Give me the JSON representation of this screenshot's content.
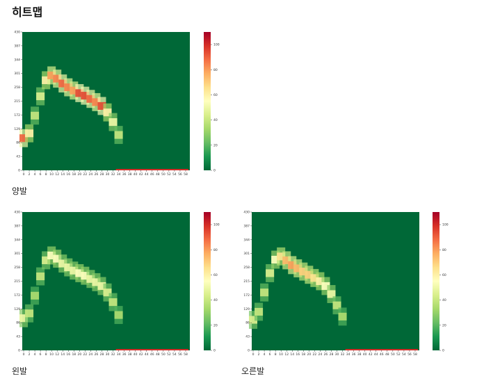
{
  "title": "히트맵",
  "chart_data": [
    {
      "type": "heatmap",
      "caption": "양발",
      "colormap": "RdYlGn_r",
      "xlim": [
        -0.5,
        59.5
      ],
      "xticks": [
        0,
        2,
        4,
        6,
        8,
        10,
        12,
        14,
        16,
        18,
        20,
        22,
        24,
        26,
        28,
        30,
        32,
        34,
        36,
        38,
        40,
        42,
        44,
        46,
        48,
        50,
        52,
        54,
        56,
        58
      ],
      "ylim": [
        0,
        430
      ],
      "yticks": [
        0,
        43,
        86,
        129,
        172,
        215,
        258,
        301,
        344,
        387,
        430
      ],
      "clim": [
        0,
        110
      ],
      "cticks": [
        0,
        20,
        40,
        60,
        80,
        100
      ],
      "x": [
        0,
        2,
        4,
        6,
        8,
        10,
        12,
        14,
        16,
        18,
        20,
        22,
        24,
        26,
        28,
        30,
        32,
        34
      ],
      "ridge": [
        100,
        115,
        170,
        230,
        280,
        295,
        285,
        270,
        258,
        248,
        240,
        232,
        222,
        212,
        200,
        180,
        150,
        110
      ],
      "intensity": [
        90,
        60,
        40,
        45,
        60,
        80,
        85,
        90,
        85,
        80,
        95,
        95,
        90,
        85,
        95,
        60,
        50,
        40
      ],
      "bottom_row": {
        "from": 33,
        "to": 59,
        "value": 100
      }
    },
    {
      "type": "heatmap",
      "caption": "왼발",
      "colormap": "RdYlGn_r",
      "xlim": [
        -0.5,
        59.5
      ],
      "xticks": [
        0,
        2,
        4,
        6,
        8,
        10,
        12,
        14,
        16,
        18,
        20,
        22,
        24,
        26,
        28,
        30,
        32,
        34,
        36,
        38,
        40,
        42,
        44,
        46,
        48,
        50,
        52,
        54,
        56,
        58
      ],
      "ylim": [
        0,
        430
      ],
      "yticks": [
        0,
        43,
        86,
        129,
        172,
        215,
        258,
        301,
        344,
        387,
        430
      ],
      "clim": [
        0,
        110
      ],
      "cticks": [
        0,
        20,
        40,
        60,
        80,
        100
      ],
      "x": [
        0,
        2,
        4,
        6,
        8,
        10,
        12,
        14,
        16,
        18,
        20,
        22,
        24,
        26,
        28,
        30,
        32,
        34
      ],
      "ridge": [
        100,
        115,
        170,
        230,
        280,
        295,
        285,
        270,
        258,
        248,
        240,
        232,
        222,
        212,
        200,
        180,
        150,
        110
      ],
      "intensity": [
        50,
        40,
        35,
        40,
        45,
        55,
        55,
        50,
        50,
        50,
        55,
        55,
        50,
        50,
        50,
        45,
        40,
        35
      ],
      "bottom_row": {
        "from": 33,
        "to": 59,
        "value": 100
      }
    },
    {
      "type": "heatmap",
      "caption": "오른발",
      "colormap": "RdYlGn_r",
      "xlim": [
        -0.5,
        59.5
      ],
      "xticks": [
        0,
        2,
        4,
        6,
        8,
        10,
        12,
        14,
        16,
        18,
        20,
        22,
        24,
        26,
        28,
        30,
        32,
        34,
        36,
        38,
        40,
        42,
        44,
        46,
        48,
        50,
        52,
        54,
        56,
        58
      ],
      "ylim": [
        0,
        430
      ],
      "yticks": [
        0,
        43,
        86,
        129,
        172,
        215,
        258,
        301,
        344,
        387,
        430
      ],
      "clim": [
        0,
        110
      ],
      "cticks": [
        0,
        20,
        40,
        60,
        80,
        100
      ],
      "x": [
        0,
        2,
        4,
        6,
        8,
        10,
        12,
        14,
        16,
        18,
        20,
        22,
        24,
        26,
        28,
        30,
        32
      ],
      "ridge": [
        95,
        120,
        180,
        240,
        282,
        292,
        280,
        265,
        255,
        245,
        235,
        225,
        215,
        200,
        175,
        140,
        105
      ],
      "intensity": [
        45,
        40,
        40,
        45,
        55,
        65,
        75,
        80,
        75,
        70,
        70,
        65,
        60,
        55,
        50,
        40,
        35
      ],
      "bottom_row": {
        "from": 33,
        "to": 59,
        "value": 100
      }
    }
  ]
}
